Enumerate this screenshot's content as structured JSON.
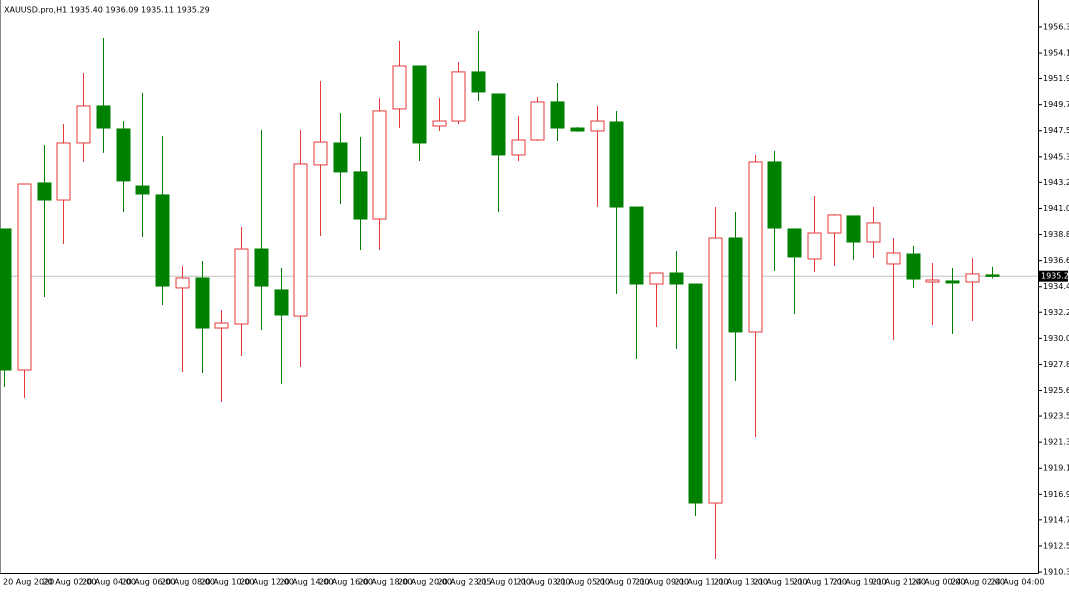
{
  "chart_data": {
    "type": "candlestick",
    "title": "XAUUSD.pro,H1  1935.40 1936.09 1935.11 1935.29",
    "categories": [
      "20 Aug 2020",
      null,
      "20 Aug 02:00",
      null,
      "20 Aug 04:00",
      null,
      "20 Aug 06:00",
      null,
      "20 Aug 08:00",
      null,
      "20 Aug 10:00",
      null,
      "20 Aug 12:00",
      null,
      "20 Aug 14:00",
      null,
      "20 Aug 16:00",
      null,
      "20 Aug 18:00",
      null,
      "20 Aug 20:00",
      null,
      "20 Aug 23:05",
      null,
      "21 Aug 01:00",
      null,
      "21 Aug 03:00",
      null,
      "21 Aug 05:00",
      null,
      "21 Aug 07:00",
      null,
      "21 Aug 09:00",
      null,
      "21 Aug 11:00",
      null,
      "21 Aug 13:00",
      null,
      "21 Aug 15:00",
      null,
      "21 Aug 17:00",
      null,
      "21 Aug 19:00",
      null,
      "21 Aug 21:00",
      null,
      "24 Aug 00:00",
      null,
      "24 Aug 02:00",
      null,
      "24 Aug 04:00"
    ],
    "open": [
      1939.27,
      1927.38,
      1943.15,
      1941.71,
      1946.52,
      1949.64,
      1947.7,
      1942.89,
      1942.14,
      1934.3,
      1935.14,
      1930.92,
      1931.26,
      1937.58,
      1934.13,
      1931.93,
      1944.67,
      1946.52,
      1944.08,
      1940.11,
      1949.39,
      1953.01,
      1947.95,
      1948.37,
      1952.51,
      1950.65,
      1945.51,
      1946.77,
      1949.98,
      1947.78,
      1947.53,
      1948.29,
      1941.12,
      1934.63,
      1935.56,
      1934.63,
      1916.17,
      1938.51,
      1930.59,
      1944.92,
      1939.27,
      1936.74,
      1938.93,
      1940.37,
      1938.17,
      1936.32,
      1937.16,
      1934.8,
      1934.89,
      1934.8,
      1935.4
    ],
    "high": [
      1939.27,
      1943.06,
      1946.35,
      1948.12,
      1952.42,
      1955.37,
      1948.37,
      1950.74,
      1947.11,
      1936.15,
      1936.57,
      1932.44,
      1939.44,
      1947.62,
      1935.98,
      1947.62,
      1951.75,
      1949.05,
      1947.03,
      1950.31,
      1955.12,
      1953.01,
      1950.31,
      1953.35,
      1955.96,
      1950.65,
      1948.8,
      1950.4,
      1951.58,
      1947.87,
      1949.64,
      1949.22,
      1941.12,
      1935.56,
      1937.41,
      1934.63,
      1941.12,
      1940.7,
      1945.51,
      1945.85,
      1939.27,
      1942.05,
      1940.53,
      1940.37,
      1941.12,
      1938.51,
      1937.84,
      1936.4,
      1935.98,
      1936.82,
      1936.09
    ],
    "low": [
      1925.95,
      1925.02,
      1933.54,
      1938.0,
      1944.92,
      1945.68,
      1940.7,
      1938.59,
      1932.86,
      1927.21,
      1927.13,
      1924.68,
      1928.56,
      1930.75,
      1926.2,
      1927.63,
      1938.68,
      1941.38,
      1937.5,
      1937.5,
      1947.78,
      1945.0,
      1947.53,
      1948.12,
      1950.06,
      1940.7,
      1945.0,
      1946.69,
      1946.69,
      1947.45,
      1941.12,
      1933.79,
      1928.31,
      1931.01,
      1929.15,
      1915.07,
      1911.45,
      1926.45,
      1921.73,
      1935.73,
      1932.1,
      1935.64,
      1936.15,
      1936.66,
      1936.82,
      1929.91,
      1934.3,
      1931.18,
      1930.42,
      1931.51,
      1935.11
    ],
    "close": [
      1927.38,
      1943.06,
      1941.71,
      1946.52,
      1949.64,
      1947.78,
      1943.32,
      1942.22,
      1934.46,
      1935.14,
      1930.92,
      1931.34,
      1937.58,
      1934.46,
      1932.02,
      1944.75,
      1946.6,
      1944.08,
      1940.11,
      1949.22,
      1953.01,
      1946.52,
      1948.37,
      1952.51,
      1950.82,
      1945.51,
      1946.77,
      1949.98,
      1947.78,
      1947.53,
      1948.37,
      1941.12,
      1934.63,
      1935.56,
      1934.63,
      1916.17,
      1938.51,
      1930.59,
      1944.92,
      1939.35,
      1936.91,
      1938.93,
      1940.45,
      1938.17,
      1939.78,
      1937.25,
      1935.05,
      1934.97,
      1934.72,
      1935.48,
      1935.29
    ],
    "up_color": "#e8393a",
    "down_color": "#008000",
    "last_price": 1935.29,
    "ylim": [
      1910.27,
      1958.15
    ],
    "yticks": [
      {
        "value": 1956.3,
        "label": "1956.30"
      },
      {
        "value": 1954.1,
        "label": "1954.10"
      },
      1951.95,
      1949.75,
      1947.55,
      1945.35,
      {
        "value": 1943.2,
        "label": "1943.20"
      },
      {
        "value": 1941,
        "label": "1941.00"
      },
      {
        "value": 1938.8,
        "label": "1938.80"
      },
      {
        "value": 1936.6,
        "label": "1936.60"
      },
      {
        "value": 1934.4,
        "label": "1934.40"
      },
      1932.25,
      1930.05,
      1927.85,
      1925.65,
      {
        "value": 1923.5,
        "label": "1923.50"
      },
      {
        "value": 1921.3,
        "label": "1921.30"
      },
      {
        "value": 1919.1,
        "label": "1919.10"
      },
      {
        "value": 1916.9,
        "label": "1916.90"
      },
      1914.75,
      1912.55,
      1910.35
    ],
    "grid": false
  }
}
